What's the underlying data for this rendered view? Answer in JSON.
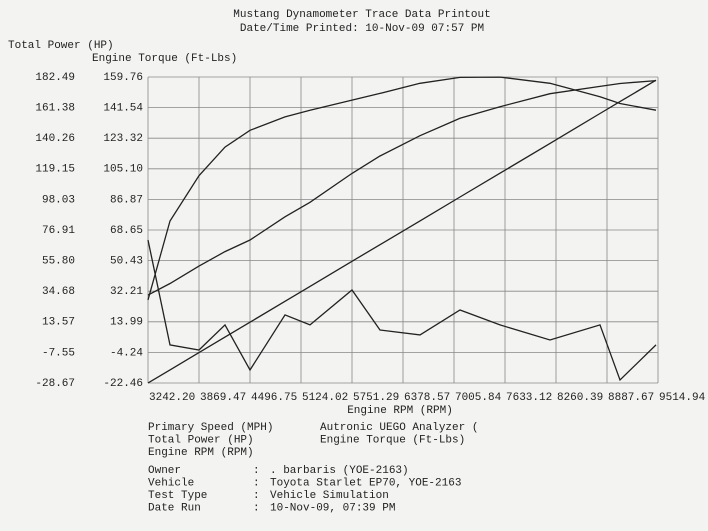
{
  "chart_data": {
    "type": "line",
    "title": "Mustang Dynamometer Trace Data Printout",
    "subtitle": "Date/Time Printed: 10-Nov-09 07:57 PM",
    "y_label": "Total Power (HP)",
    "y2_label": "Engine Torque (Ft-Lbs)",
    "x_label": "Engine RPM (RPM)",
    "xlim": [
      3242.2,
      9514.94
    ],
    "xticks": [
      {
        "value": 3242.2,
        "label": "3242.20"
      },
      3869.47,
      4496.75,
      5124.02,
      5751.29,
      6378.57,
      7005.84,
      7633.12,
      8260.39,
      8887.67,
      9514.94
    ],
    "ylim": [
      -28.67,
      182.49
    ],
    "yticks": [
      -28.67,
      -7.55,
      13.57,
      34.68,
      {
        "value": 55.8,
        "label": "55.80"
      },
      76.91,
      98.03,
      119.15,
      140.26,
      161.38,
      182.49
    ],
    "y2lim": [
      -22.46,
      159.76
    ],
    "y2ticks": [
      -22.46,
      -4.24,
      13.99,
      32.21,
      50.43,
      68.65,
      86.87,
      {
        "value": 105.1,
        "label": "105.10"
      },
      123.32,
      141.54,
      159.76
    ],
    "grid": true,
    "x": [
      3242,
      3513,
      3869,
      4189,
      4497,
      4927,
      5235,
      5751,
      6096,
      6588,
      7080,
      7572,
      8187,
      8802,
      9048,
      9490
    ],
    "series": [
      {
        "name": "Primary Speed (MPH)",
        "color": "#222222",
        "values": [
          null,
          null,
          null,
          null,
          null,
          null,
          null,
          null,
          null,
          null,
          null,
          null,
          null,
          null,
          null,
          null
        ]
      },
      {
        "name": "Total Power (HP)",
        "color": "#222222",
        "values": [
          32,
          40,
          52,
          62,
          70,
          86,
          96,
          116,
          128,
          142,
          154,
          162,
          171,
          176,
          178,
          180
        ]
      },
      {
        "name": "Engine RPM (RPM)",
        "color": "#222222",
        "values": [
          -28.7,
          -19.6,
          -7.7,
          3.0,
          13.3,
          27.7,
          38.0,
          55.3,
          66.8,
          83.2,
          99.7,
          116.1,
          136.7,
          157.3,
          165.5,
          180.3
        ]
      },
      {
        "name": "Autronic UEGO Analyzer (",
        "color": "#222222",
        "values": [
          70,
          -2.4,
          -5.9,
          11.4,
          -19.7,
          18.3,
          11.4,
          35.5,
          7.9,
          4.5,
          21.7,
          11.4,
          1,
          11.4,
          -26.6,
          -2.4
        ]
      },
      {
        "name": "Engine Torque (Ft-Lbs)",
        "color": "#222222",
        "axis": "y2",
        "values": [
          27,
          74,
          101,
          118,
          128,
          136,
          140,
          146,
          150,
          156,
          159.5,
          159.7,
          156,
          148,
          144,
          140
        ]
      }
    ]
  },
  "info": {
    "separator": ":",
    "rows": [
      {
        "label": "Owner",
        "value": ". barbaris (YOE-2163)"
      },
      {
        "label": "Vehicle",
        "value": "Toyota Starlet EP70, YOE-2163"
      },
      {
        "label": "Test Type",
        "value": "Vehicle Simulation"
      },
      {
        "label": "Date Run",
        "value": "10-Nov-09, 07:39 PM"
      }
    ]
  }
}
